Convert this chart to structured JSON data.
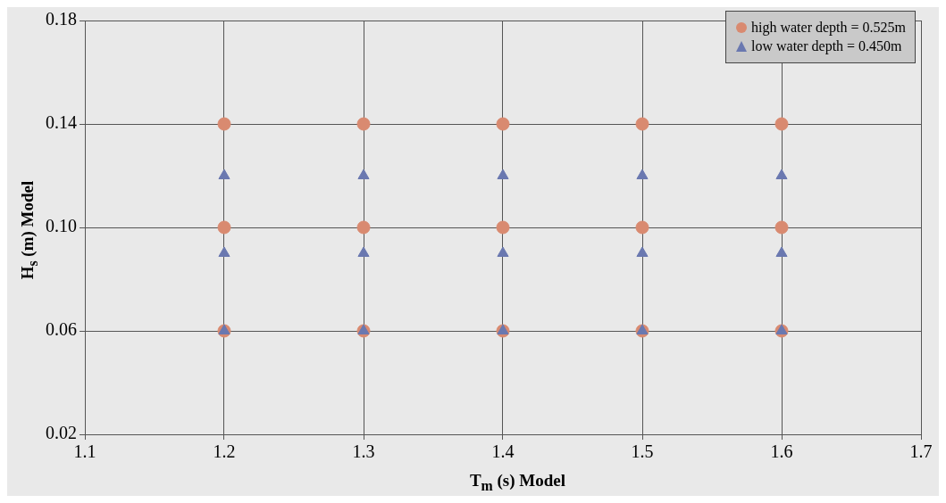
{
  "chart_data": {
    "type": "scatter",
    "xlabel": "T$_{m}$ (s) Model",
    "ylabel": "H$_{s}$ (m) Model",
    "xlim": [
      1.1,
      1.7
    ],
    "xticks": [
      1.1,
      1.2,
      1.3,
      1.4,
      1.5,
      1.6,
      1.7
    ],
    "ylim": [
      0.02,
      0.18
    ],
    "yticks": [
      {
        "value": 0.02,
        "label": "0.02"
      },
      {
        "value": 0.06,
        "label": "0.06"
      },
      {
        "value": 0.1,
        "label": "0.10"
      },
      {
        "value": 0.14,
        "label": "0.14"
      },
      {
        "value": 0.18,
        "label": "0.18"
      }
    ],
    "grid": true,
    "legend": "top right",
    "series": [
      {
        "name": "high water depth = 0.525m",
        "color": "#d98a70",
        "marker": "circle",
        "x": [
          1.2,
          1.2,
          1.2,
          1.3,
          1.3,
          1.3,
          1.4,
          1.4,
          1.4,
          1.5,
          1.5,
          1.5,
          1.6,
          1.6,
          1.6
        ],
        "values": [
          0.14,
          0.1,
          0.06,
          0.14,
          0.1,
          0.06,
          0.14,
          0.1,
          0.06,
          0.14,
          0.1,
          0.06,
          0.14,
          0.1,
          0.06
        ]
      },
      {
        "name": "low water depth = 0.450m",
        "color": "#6a78b0",
        "marker": "triangle",
        "x": [
          1.2,
          1.2,
          1.2,
          1.3,
          1.3,
          1.3,
          1.4,
          1.4,
          1.4,
          1.5,
          1.5,
          1.5,
          1.6,
          1.6,
          1.6
        ],
        "values": [
          0.12,
          0.09,
          0.06,
          0.12,
          0.09,
          0.06,
          0.12,
          0.09,
          0.06,
          0.12,
          0.09,
          0.06,
          0.12,
          0.09,
          0.06
        ]
      }
    ]
  }
}
